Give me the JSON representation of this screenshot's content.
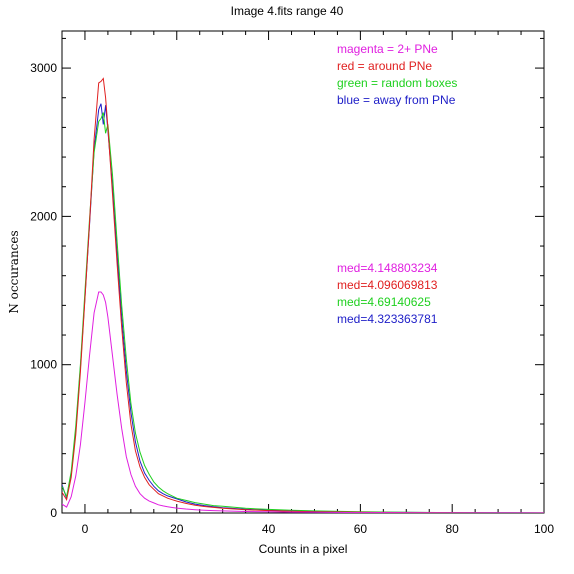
{
  "chart_data": {
    "type": "line",
    "title": "Image 4.fits   range 40",
    "xlabel": "Counts in a pixel",
    "ylabel": "N occurances",
    "xlim": [
      -5,
      100
    ],
    "ylim": [
      0,
      3250
    ],
    "xticks": [
      0,
      20,
      40,
      60,
      80,
      100
    ],
    "yticks": [
      0,
      1000,
      2000,
      3000
    ],
    "legend_placement": "top-right",
    "legend": [
      {
        "text": "magenta = 2+ PNe",
        "color": "#e020e0"
      },
      {
        "text": "red = around PNe",
        "color": "#e02020"
      },
      {
        "text": "green = random boxes",
        "color": "#20d020"
      },
      {
        "text": "blue = away from PNe",
        "color": "#2020c8"
      }
    ],
    "medians": [
      {
        "text": "med=4.148803234",
        "color": "#e020e0"
      },
      {
        "text": "med=4.096069813",
        "color": "#e02020"
      },
      {
        "text": "med=4.69140625",
        "color": "#20d020"
      },
      {
        "text": "med=4.323363781",
        "color": "#2020c8"
      }
    ],
    "series": [
      {
        "color": "#2020c8",
        "x": [
          -5,
          -4,
          -3,
          -2,
          -1,
          0,
          1,
          2,
          3,
          3.5,
          4,
          4.5,
          5,
          6,
          7,
          8,
          9,
          10,
          11,
          12,
          13,
          14,
          15,
          16,
          17,
          18,
          19,
          20,
          22,
          24,
          26,
          28,
          30,
          35,
          40,
          45,
          50,
          60,
          70,
          80,
          90,
          100
        ],
        "y": [
          190,
          100,
          260,
          560,
          980,
          1460,
          1940,
          2450,
          2720,
          2760,
          2620,
          2750,
          2580,
          2200,
          1750,
          1320,
          960,
          680,
          480,
          350,
          270,
          220,
          180,
          150,
          130,
          115,
          105,
          95,
          75,
          60,
          50,
          42,
          35,
          25,
          18,
          14,
          10,
          6,
          4,
          3,
          2,
          1
        ]
      },
      {
        "color": "#20d020",
        "x": [
          -5,
          -4,
          -3,
          -2,
          -1,
          0,
          1,
          2,
          3,
          3.5,
          4,
          4.5,
          5,
          6,
          7,
          8,
          9,
          10,
          11,
          12,
          13,
          14,
          15,
          16,
          17,
          18,
          19,
          20,
          22,
          24,
          26,
          28,
          30,
          35,
          40,
          45,
          50,
          60,
          70,
          80,
          90,
          100
        ],
        "y": [
          180,
          110,
          280,
          590,
          1000,
          1500,
          1980,
          2430,
          2640,
          2660,
          2700,
          2560,
          2620,
          2280,
          1830,
          1400,
          1040,
          740,
          540,
          410,
          320,
          260,
          210,
          175,
          150,
          130,
          115,
          100,
          85,
          70,
          60,
          50,
          45,
          32,
          24,
          18,
          14,
          8,
          5,
          3,
          2,
          1
        ]
      },
      {
        "color": "#e02020",
        "x": [
          -5,
          -4,
          -3,
          -2,
          -1,
          0,
          1,
          2,
          3,
          3.5,
          4,
          4.5,
          5,
          6,
          7,
          8,
          9,
          10,
          11,
          12,
          13,
          14,
          15,
          16,
          17,
          18,
          19,
          20,
          22,
          24,
          26,
          28,
          30,
          35,
          40,
          45,
          50,
          60,
          70,
          80,
          90,
          100
        ],
        "y": [
          140,
          90,
          240,
          530,
          950,
          1450,
          1950,
          2520,
          2900,
          2910,
          2930,
          2800,
          2600,
          2150,
          1680,
          1250,
          880,
          600,
          420,
          310,
          240,
          190,
          160,
          130,
          115,
          100,
          90,
          80,
          65,
          52,
          44,
          38,
          32,
          22,
          16,
          12,
          9,
          5,
          3,
          2,
          1,
          1
        ]
      },
      {
        "color": "#e020e0",
        "x": [
          -5,
          -4,
          -3,
          -2,
          -1,
          0,
          1,
          2,
          3,
          3.5,
          4,
          4.5,
          5,
          6,
          7,
          8,
          9,
          10,
          11,
          12,
          13,
          14,
          15,
          16,
          17,
          18,
          19,
          20,
          22,
          24,
          26,
          28,
          30,
          35,
          40,
          45,
          50,
          60,
          70,
          80,
          90,
          100
        ],
        "y": [
          60,
          40,
          110,
          250,
          460,
          750,
          1060,
          1350,
          1490,
          1490,
          1470,
          1420,
          1320,
          1060,
          800,
          570,
          380,
          260,
          180,
          130,
          100,
          80,
          68,
          55,
          48,
          42,
          37,
          33,
          27,
          22,
          19,
          16,
          14,
          10,
          8,
          6,
          5,
          3,
          2,
          1,
          1,
          0
        ]
      }
    ]
  }
}
